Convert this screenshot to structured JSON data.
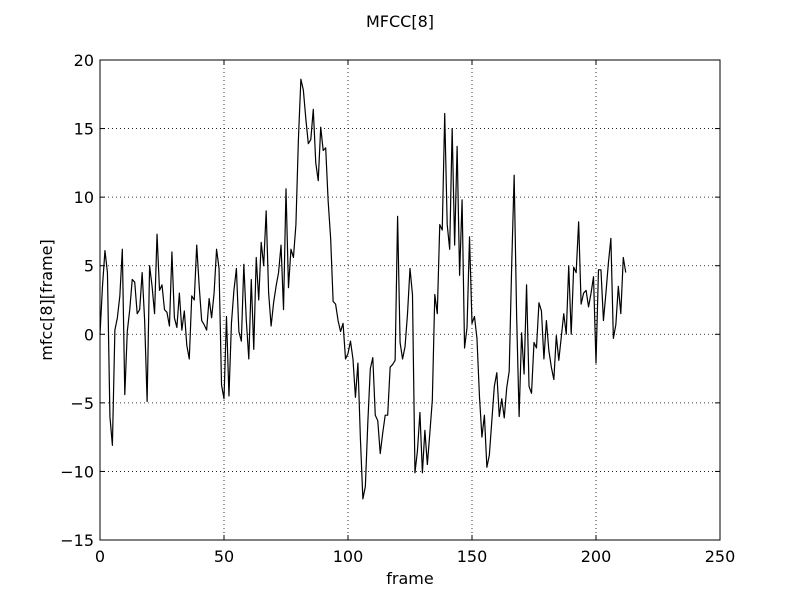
{
  "chart_data": {
    "type": "line",
    "title": "MFCC[8]",
    "xlabel": "frame",
    "ylabel": "mfcc[8][frame]",
    "xlim": [
      0,
      250
    ],
    "ylim": [
      -15,
      20
    ],
    "xticks": [
      0,
      50,
      100,
      150,
      200,
      250
    ],
    "yticks": [
      -15,
      -10,
      -5,
      0,
      5,
      10,
      15,
      20
    ],
    "grid": true,
    "line_color": "#000000",
    "series": [
      {
        "values": [
          0.0,
          3.5,
          6.1,
          4.5,
          -6.0,
          -8.1,
          0.3,
          1.2,
          2.8,
          6.2,
          -4.4,
          0.2,
          1.8,
          4.0,
          3.8,
          1.5,
          1.8,
          4.5,
          1.0,
          -4.9,
          5.0,
          3.5,
          1.5,
          7.3,
          3.2,
          3.6,
          1.8,
          1.6,
          0.6,
          6.0,
          1.2,
          0.5,
          3.0,
          0.3,
          1.7,
          -0.8,
          -1.8,
          2.8,
          2.5,
          6.5,
          3.5,
          1.0,
          0.7,
          0.3,
          2.6,
          1.2,
          3.0,
          6.2,
          4.8,
          -3.7,
          -4.7,
          1.3,
          -4.5,
          0.8,
          3.2,
          4.8,
          0.2,
          -0.5,
          5.1,
          1.0,
          -1.8,
          4.0,
          -1.1,
          5.6,
          2.5,
          6.7,
          5.0,
          9.0,
          3.0,
          0.6,
          2.3,
          3.5,
          4.5,
          6.5,
          1.8,
          10.6,
          3.4,
          6.2,
          5.6,
          8.0,
          14.2,
          18.6,
          17.8,
          15.7,
          13.9,
          14.2,
          16.4,
          12.5,
          11.2,
          15.1,
          13.4,
          13.6,
          9.7,
          7.0,
          2.4,
          2.2,
          1.0,
          0.2,
          0.8,
          -1.8,
          -1.4,
          -0.5,
          -1.8,
          -4.6,
          -2.1,
          -7.6,
          -12.0,
          -11.1,
          -6.4,
          -2.5,
          -1.7,
          -5.9,
          -6.3,
          -8.7,
          -7.2,
          -5.9,
          -5.9,
          -2.4,
          -2.2,
          -1.9,
          8.6,
          -0.6,
          -1.8,
          -0.9,
          1.5,
          4.8,
          2.9,
          -10.1,
          -8.5,
          -5.7,
          -10.1,
          -7.0,
          -9.5,
          -7.2,
          -4.8,
          2.9,
          1.5,
          8.0,
          7.6,
          16.1,
          8.0,
          6.2,
          15.0,
          6.5,
          13.7,
          4.3,
          9.8,
          -1.0,
          0.5,
          7.1,
          0.8,
          1.3,
          -0.3,
          -4.5,
          -7.5,
          -5.9,
          -9.7,
          -8.8,
          -6.3,
          -3.8,
          -2.8,
          -6.0,
          -4.7,
          -6.1,
          -3.9,
          -2.7,
          5.0,
          11.6,
          1.3,
          -6.0,
          0.1,
          -2.9,
          3.6,
          -3.8,
          -4.3,
          -0.6,
          -1.0,
          2.3,
          1.7,
          -1.8,
          1.0,
          -1.2,
          -2.4,
          -3.3,
          -0.1,
          -1.9,
          -0.2,
          1.5,
          0.0,
          5.0,
          0.0,
          4.9,
          4.5,
          8.2,
          2.2,
          3.0,
          3.2,
          2.0,
          3.0,
          4.2,
          -2.1,
          4.7,
          4.7,
          1.0,
          3.0,
          5.2,
          7.0,
          -0.3,
          0.7,
          3.5,
          1.5,
          5.6,
          4.5
        ]
      }
    ]
  }
}
